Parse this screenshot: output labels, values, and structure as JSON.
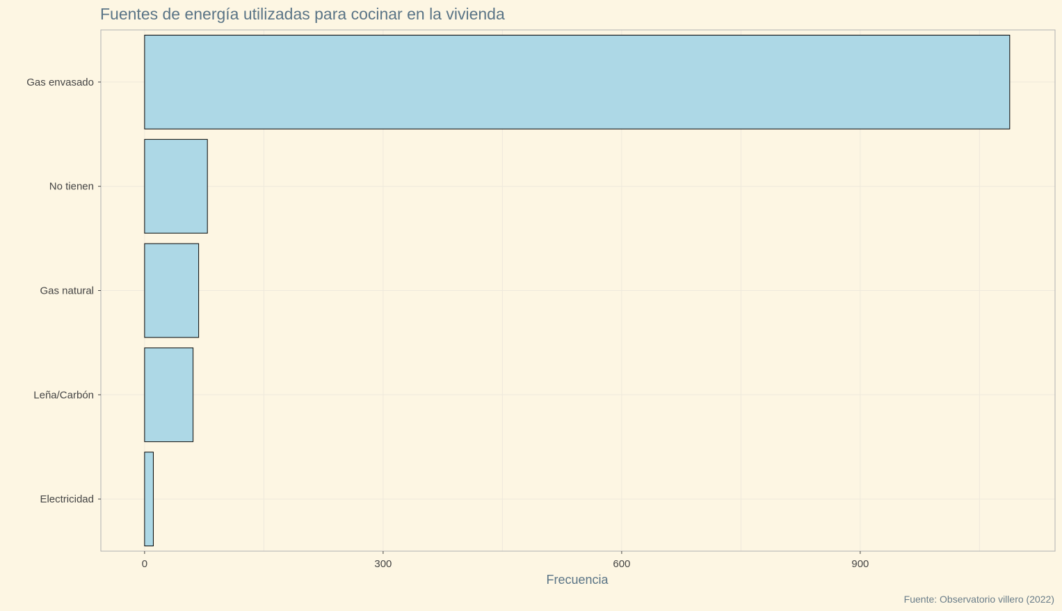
{
  "chart_data": {
    "type": "bar",
    "orientation": "horizontal",
    "title": "Fuentes de energía utilizadas para cocinar en la vivienda",
    "xlabel": "Frecuencia",
    "ylabel": "",
    "categories": [
      "Gas envasado",
      "No tienen",
      "Gas natural",
      "Leña/Carbón",
      "Electricidad"
    ],
    "values": [
      1088,
      79,
      68,
      61,
      11
    ],
    "xlim": [
      -55,
      1145
    ],
    "xticks": [
      "0",
      "300",
      "600",
      "900"
    ],
    "grid": true,
    "legend": "none",
    "caption": "Fuente: Observatorio villero (2022)",
    "colors": {
      "bar_fill": "#add8e6",
      "bar_stroke": "#000000",
      "background": "#fdf6e3",
      "grid": "#eee9dc",
      "panel_border": "#b0b0b0"
    }
  }
}
